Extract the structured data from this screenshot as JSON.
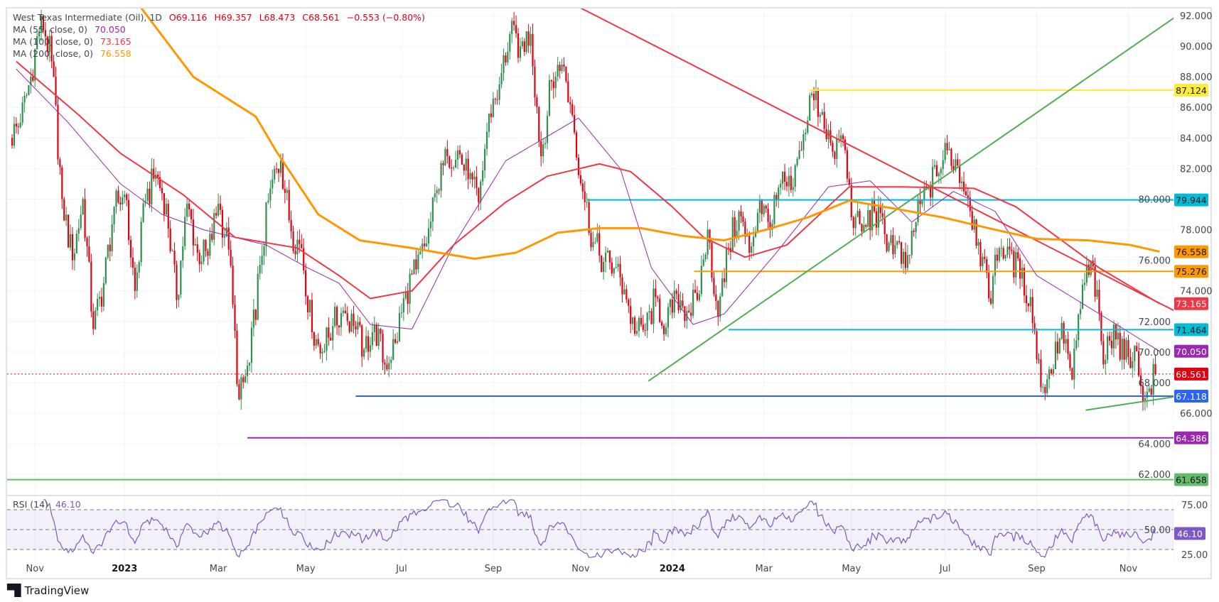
{
  "header": {
    "symbol": "West Texas Intermediate (Oil), 1D",
    "open": "O69.116",
    "high": "H69.357",
    "low": "L68.473",
    "close": "C68.561",
    "change": "−0.553 (−0.80%)",
    "ma55_label": "MA (55, close, 0)",
    "ma55_value": "70.050",
    "ma100_label": "MA (100, close, 0)",
    "ma100_value": "73.165",
    "ma200_label": "MA (200, close, 0)",
    "ma200_value": "76.558",
    "rsi_label": "RSI (14)",
    "rsi_value": "46.10"
  },
  "brand": "TradingView",
  "colors": {
    "up": "#2f8f4e",
    "down": "#e3000f",
    "ma55": "#9c27b0",
    "ma100": "#f23645",
    "ma200": "#ff9800",
    "rsi": "#7e57c2"
  },
  "chart_data": {
    "type": "candlestick",
    "title": "West Texas Intermediate (Oil), 1D",
    "ylim": [
      60.5,
      92.5
    ],
    "y_ticks": [
      62,
      64,
      66,
      68,
      70,
      72,
      74,
      76,
      78,
      80,
      82,
      84,
      86,
      88,
      90,
      92
    ],
    "y_tick_labels": [
      "62.000",
      "64.000",
      "66.000",
      "68.000",
      "70.000",
      "72.000",
      "74.000",
      "76.000",
      "78.000",
      "80.000",
      "82.000",
      "84.000",
      "86.000",
      "88.000",
      "90.000",
      "92.000"
    ],
    "x_labels": [
      {
        "label": "Nov",
        "day": 11
      },
      {
        "label": "2023",
        "day": 54,
        "bold": true
      },
      {
        "label": "Mar",
        "day": 99
      },
      {
        "label": "May",
        "day": 141
      },
      {
        "label": "Jul",
        "day": 187
      },
      {
        "label": "Sep",
        "day": 231
      },
      {
        "label": "Nov",
        "day": 273
      },
      {
        "label": "2024",
        "day": 317,
        "bold": true
      },
      {
        "label": "Mar",
        "day": 361
      },
      {
        "label": "May",
        "day": 403
      },
      {
        "label": "Jul",
        "day": 448
      },
      {
        "label": "Sep",
        "day": 492
      },
      {
        "label": "Nov",
        "day": 536
      }
    ],
    "weekly_closes_from_2022_10_17": [
      85,
      88,
      92,
      89,
      80,
      76,
      80,
      71.5,
      74.5,
      79.5,
      80.3,
      74,
      79.9,
      81.6,
      79.7,
      73.4,
      79.7,
      76.5,
      76.3,
      79.7,
      76.7,
      66.9,
      69.3,
      75.7,
      80.7,
      82.5,
      77.9,
      76.8,
      71.3,
      70,
      71.7,
      72.7,
      71.7,
      70.2,
      71.8,
      69.2,
      70.6,
      73.9,
      75.4,
      77.1,
      80.6,
      82.8,
      83.2,
      81.3,
      79.8,
      85.6,
      87.5,
      90.8,
      90,
      90.8,
      82.8,
      87.7,
      88.8,
      85.5,
      80.5,
      77.2,
      75.9,
      75.5,
      74.1,
      71.2,
      71.4,
      73.6,
      71.6,
      73.8,
      72.7,
      73.4,
      78,
      72.3,
      76.8,
      79.2,
      76.5,
      79.9,
      78,
      81,
      80.6,
      83.2,
      86.9,
      85.7,
      83.1,
      83.9,
      78.1,
      78.3,
      79.2,
      77.7,
      77,
      75.5,
      78.5,
      80.7,
      81.5,
      83.2,
      82.2,
      80.1,
      77.2,
      73.5,
      76.8,
      76.7,
      74.8,
      73.6,
      67.7,
      68.6,
      71.9,
      68.2,
      74.4,
      75.6,
      69.2,
      71.8,
      69.5,
      70.4,
      67,
      68.561
    ],
    "moving_averages": [
      {
        "name": "MA 55",
        "value": "70.050",
        "color": "#9c27b0",
        "width": 1,
        "points": [
          [
            0,
            88.5
          ],
          [
            5,
            85
          ],
          [
            10,
            81
          ],
          [
            14,
            79
          ],
          [
            18,
            78
          ],
          [
            24,
            77
          ],
          [
            28,
            75.5
          ],
          [
            31,
            74.5
          ],
          [
            34,
            71.8
          ],
          [
            38,
            71.5
          ],
          [
            42,
            77
          ],
          [
            47,
            82.5
          ],
          [
            54,
            85.3
          ],
          [
            58,
            82
          ],
          [
            61,
            75.5
          ],
          [
            65,
            71.8
          ],
          [
            68,
            72.5
          ],
          [
            73,
            76.5
          ],
          [
            78,
            80.8
          ],
          [
            82,
            81.2
          ],
          [
            86,
            78.5
          ],
          [
            90,
            80.5
          ],
          [
            94,
            79.2
          ],
          [
            98,
            75
          ],
          [
            104,
            72.5
          ],
          [
            109.8,
            70.05
          ]
        ]
      },
      {
        "name": "MA 100",
        "value": "73.165",
        "color": "#f23645",
        "width": 2,
        "points": [
          [
            0,
            89
          ],
          [
            6,
            85.5
          ],
          [
            10,
            83
          ],
          [
            16,
            80.3
          ],
          [
            21,
            77.5
          ],
          [
            27,
            76.8
          ],
          [
            31,
            75
          ],
          [
            34,
            73.5
          ],
          [
            38,
            74
          ],
          [
            42,
            77
          ],
          [
            47,
            79.8
          ],
          [
            51,
            81.5
          ],
          [
            56,
            82.3
          ],
          [
            59,
            81.8
          ],
          [
            63,
            79.5
          ],
          [
            66,
            77.5
          ],
          [
            70,
            76.2
          ],
          [
            74,
            77
          ],
          [
            80,
            80.8
          ],
          [
            85,
            80.8
          ],
          [
            92,
            80.7
          ],
          [
            96,
            79.5
          ],
          [
            100,
            77.5
          ],
          [
            104,
            75.5
          ],
          [
            109.8,
            73.165
          ]
        ]
      },
      {
        "name": "MA 200",
        "value": "76.558",
        "color": "#ff9800",
        "width": 3,
        "points": [
          [
            8,
            96
          ],
          [
            12,
            92.5
          ],
          [
            17,
            88
          ],
          [
            23,
            85.4
          ],
          [
            25,
            83.1
          ],
          [
            29,
            79
          ],
          [
            33,
            77.3
          ],
          [
            38,
            76.8
          ],
          [
            44,
            76.1
          ],
          [
            48,
            76.5
          ],
          [
            52,
            77.8
          ],
          [
            56,
            78.1
          ],
          [
            60,
            78.1
          ],
          [
            64,
            77.6
          ],
          [
            68,
            77.3
          ],
          [
            72,
            78
          ],
          [
            76,
            78.8
          ],
          [
            80,
            79.9
          ],
          [
            85,
            79.3
          ],
          [
            89,
            78.8
          ],
          [
            94,
            78
          ],
          [
            98,
            77.4
          ],
          [
            103,
            77.3
          ],
          [
            107,
            77
          ],
          [
            109.8,
            76.558
          ]
        ]
      }
    ],
    "levels": [
      {
        "price": 87.124,
        "label": "87.124",
        "color": "#ffeb3b",
        "text": "#131722",
        "from_week": 76.2
      },
      {
        "price": 79.944,
        "label": "79.944",
        "color": "#00bcd4",
        "text": "#131722",
        "from_week": 54.8
      },
      {
        "price": 76.558,
        "label": "76.558",
        "color": "#ff9800",
        "text": "#131722",
        "from_week": null
      },
      {
        "price": 75.276,
        "label": "75.276",
        "color": "#ff9800",
        "text": "#131722",
        "from_week": 65.1
      },
      {
        "price": 73.165,
        "label": "73.165",
        "color": "#f23645",
        "text": "#ffffff",
        "from_week": null
      },
      {
        "price": 71.464,
        "label": "71.464",
        "color": "#00bcd4",
        "text": "#131722",
        "from_week": 68.4
      },
      {
        "price": 70.05,
        "label": "70.050",
        "color": "#9c27b0",
        "text": "#ffffff",
        "from_week": null
      },
      {
        "price": 68.561,
        "label": "68.561",
        "color": "#e3000f",
        "text": "#ffffff",
        "from_week": -2,
        "dotted": true
      },
      {
        "price": 67.118,
        "label": "67.118",
        "color": "#2962ff",
        "text": "#ffffff",
        "from_week": 32.6
      },
      {
        "price": 64.386,
        "label": "64.386",
        "color": "#9c27b0",
        "text": "#ffffff",
        "from_week": 22.2
      },
      {
        "price": 61.658,
        "label": "61.658",
        "color": "#66bb6a",
        "text": "#131722",
        "from_week": -2
      }
    ],
    "trendlines": [
      {
        "name": "downtrend",
        "color": "#f23645",
        "from": [
          54.2,
          92.5
        ],
        "to": [
          111.5,
          72.6
        ]
      },
      {
        "name": "uptrend",
        "color": "#4caf50",
        "from": [
          60.7,
          68.1
        ],
        "to": [
          111.5,
          92
        ]
      },
      {
        "name": "support-trend",
        "color": "#4caf50",
        "from": [
          102.7,
          66.2
        ],
        "to": [
          111.5,
          67.1
        ]
      }
    ],
    "rsi": {
      "period": 14,
      "value": "46.10",
      "ylim": [
        25,
        75
      ],
      "y_tick_labels": [
        "75.00",
        "50.00",
        "25.00"
      ],
      "bands": [
        70,
        50,
        30
      ]
    }
  }
}
